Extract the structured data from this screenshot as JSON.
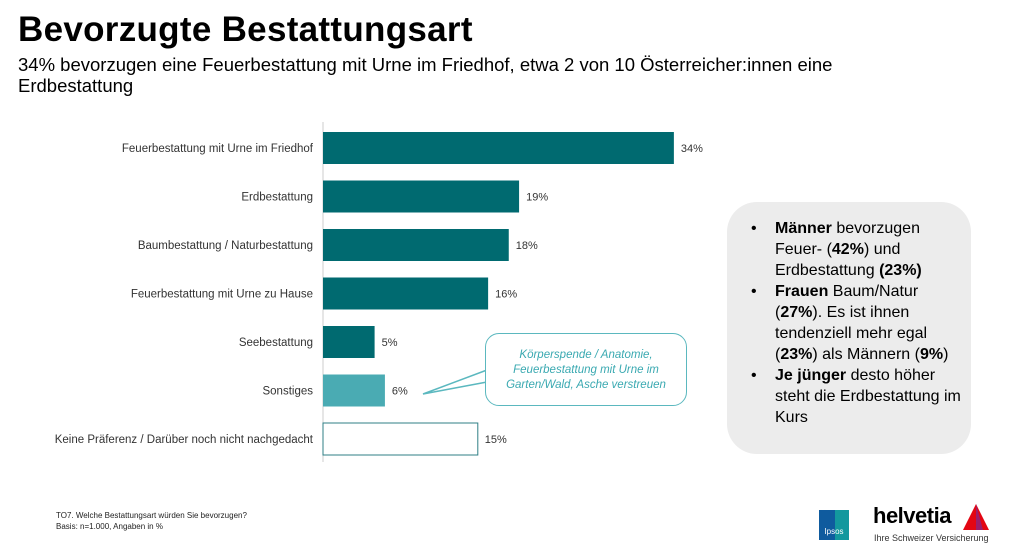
{
  "header": {
    "title": "Bevorzugte Bestattungsart",
    "subtitle": "34% bevorzugen eine Feuerbestattung mit Urne im Friedhof, etwa 2 von 10 Österreicher:innen eine Erdbestattung"
  },
  "chart_data": {
    "type": "bar",
    "orientation": "horizontal",
    "categories": [
      "Feuerbestattung mit Urne im Friedhof",
      "Erdbestattung",
      "Baumbestattung / Naturbestattung",
      "Feuerbestattung mit Urne zu Hause",
      "Seebestattung",
      "Sonstiges",
      "Keine Präferenz  / Darüber noch nicht nachgedacht"
    ],
    "values": [
      34,
      19,
      18,
      16,
      5,
      6,
      15
    ],
    "labels": [
      "34%",
      "19%",
      "18%",
      "16%",
      "5%",
      "6%",
      "15%"
    ],
    "unit": "%",
    "colors": [
      "#006a70",
      "#006a70",
      "#006a70",
      "#006a70",
      "#006a70",
      "#4aabb3",
      "#ffffff"
    ],
    "grid": false,
    "annotation": "Körperspende / Anatomie, Feuerbestattung mit Urne im Garten/Wald, Asche verstreuen"
  },
  "insights": [
    {
      "bold": "Männer",
      "text": " bevorzugen Feuer- (",
      "b2": "42%",
      "t2": ") und Erdbestattung ",
      "b3": "(23%)",
      "t3": ""
    },
    {
      "bold": "Frauen",
      "text": " Baum/Natur (",
      "b2": "27%",
      "t2": "). Es ist ihnen tendenziell mehr egal (",
      "b3": "23%",
      "t3": ") als Männern (",
      "b4": "9%",
      "t4": ")"
    },
    {
      "bold": "Je jünger",
      "text": " desto höher steht die Erdbestattung im Kurs"
    }
  ],
  "footer": {
    "question": "TO7. Welche Bestattungsart würden Sie bevorzugen?",
    "basis": "Basis: n=1.000, Angaben in %"
  },
  "logos": {
    "ipsos": "Ipsos",
    "helvetia": "helvetia",
    "helvetia_tagline": "Ihre Schweizer Versicherung"
  }
}
